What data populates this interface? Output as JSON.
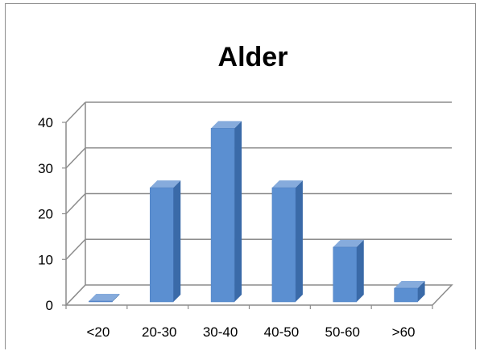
{
  "chart_data": {
    "type": "bar",
    "title": "Alder",
    "categories": [
      "<20",
      "20-30",
      "30-40",
      "40-50",
      "50-60",
      ">60"
    ],
    "values": [
      0,
      25,
      38,
      25,
      12,
      3
    ],
    "ylim": [
      0,
      40
    ],
    "yticks": [
      0,
      10,
      20,
      30,
      40
    ],
    "xlabel": "",
    "ylabel": "",
    "grid": true,
    "legend": "none",
    "style": "3d-column",
    "colors": {
      "bar_front": "#5b8fd1",
      "bar_side": "#3a6aa8",
      "bar_top": "#86abdc",
      "gridline": "#8c8c8c",
      "text": "#000000"
    }
  }
}
